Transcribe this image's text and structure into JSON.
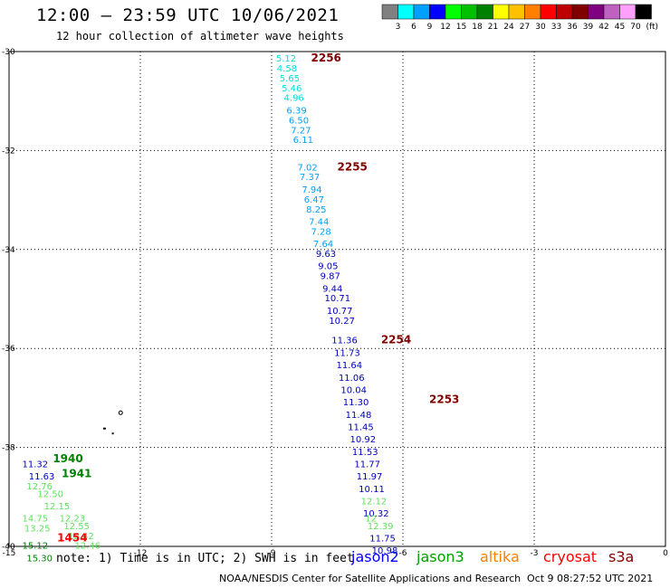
{
  "title": "12:00 — 23:59 UTC 10/06/2021",
  "subtitle": "12 hour collection of altimeter wave heights",
  "legend": {
    "unit": "(ft)",
    "bins": [
      {
        "label": "3",
        "color": "#808080"
      },
      {
        "label": "6",
        "color": "#00ffff"
      },
      {
        "label": "9",
        "color": "#00a0ff"
      },
      {
        "label": "12",
        "color": "#0000ff"
      },
      {
        "label": "15",
        "color": "#00ff00"
      },
      {
        "label": "18",
        "color": "#00c000"
      },
      {
        "label": "21",
        "color": "#008000"
      },
      {
        "label": "24",
        "color": "#ffff00"
      },
      {
        "label": "27",
        "color": "#ffc000"
      },
      {
        "label": "30",
        "color": "#ff8000"
      },
      {
        "label": "33",
        "color": "#ff0000"
      },
      {
        "label": "36",
        "color": "#c00000"
      },
      {
        "label": "39",
        "color": "#800000"
      },
      {
        "label": "42",
        "color": "#800080"
      },
      {
        "label": "45",
        "color": "#c060c0"
      },
      {
        "label": "70",
        "color": "#ffa0ff"
      },
      {
        "label": "",
        "color": "#000000"
      }
    ]
  },
  "note": "note: 1) Time is in UTC; 2) SWH is in feet",
  "satellites": [
    {
      "name": "jason2",
      "color": "#0000ff"
    },
    {
      "name": "jason3",
      "color": "#00a000"
    },
    {
      "name": "altika",
      "color": "#ff8000"
    },
    {
      "name": "cryosat",
      "color": "#ff0000"
    },
    {
      "name": "s3a",
      "color": "#800000"
    }
  ],
  "credit": "NOAA/NESDIS Center for Satellite Applications and Research",
  "credit_date": "Oct  9 08:27:52 UTC 2021",
  "chart_data": {
    "type": "scatter",
    "x_ticks": [
      "-15",
      "-12",
      "-9",
      "-6",
      "-3",
      "0"
    ],
    "y_ticks": [
      "-30",
      "-32",
      "-34",
      "-36",
      "-38",
      "-40"
    ],
    "xlim": [
      -15,
      0
    ],
    "ylim": [
      -40,
      -30
    ],
    "grid": true,
    "time_labels": [
      {
        "text": "2256",
        "lon": -8.1,
        "lat": -30.2,
        "color": "#800000"
      },
      {
        "text": "2255",
        "lon": -7.5,
        "lat": -32.4,
        "color": "#800000"
      },
      {
        "text": "2254",
        "lon": -6.5,
        "lat": -35.9,
        "color": "#800000"
      },
      {
        "text": "2253",
        "lon": -5.4,
        "lat": -37.1,
        "color": "#800000"
      },
      {
        "text": "1940",
        "lon": -14.0,
        "lat": -38.3,
        "color": "#008000"
      },
      {
        "text": "1941",
        "lon": -13.8,
        "lat": -38.6,
        "color": "#008000"
      },
      {
        "text": "1454",
        "lon": -13.9,
        "lat": -39.9,
        "color": "#ff0000"
      }
    ],
    "points": [
      {
        "v": "5.12",
        "lon": -8.9,
        "lat": -30.2,
        "c": "#00e0e0"
      },
      {
        "v": "4.58",
        "lon": -8.88,
        "lat": -30.4,
        "c": "#00e0e0"
      },
      {
        "v": "5.65",
        "lon": -8.82,
        "lat": -30.6,
        "c": "#00e0e0"
      },
      {
        "v": "5.46",
        "lon": -8.77,
        "lat": -30.8,
        "c": "#00e0e0"
      },
      {
        "v": "4.96",
        "lon": -8.72,
        "lat": -31.0,
        "c": "#00e0e0"
      },
      {
        "v": "6.39",
        "lon": -8.66,
        "lat": -31.25,
        "c": "#00a0ff"
      },
      {
        "v": "6.50",
        "lon": -8.61,
        "lat": -31.45,
        "c": "#00a0ff"
      },
      {
        "v": "7.27",
        "lon": -8.56,
        "lat": -31.65,
        "c": "#00a0ff"
      },
      {
        "v": "6.11",
        "lon": -8.51,
        "lat": -31.85,
        "c": "#00a0ff"
      },
      {
        "v": "7.02",
        "lon": -8.41,
        "lat": -32.4,
        "c": "#00a0ff"
      },
      {
        "v": "7.37",
        "lon": -8.36,
        "lat": -32.6,
        "c": "#00a0ff"
      },
      {
        "v": "7.94",
        "lon": -8.31,
        "lat": -32.85,
        "c": "#00a0ff"
      },
      {
        "v": "6.47",
        "lon": -8.26,
        "lat": -33.05,
        "c": "#00a0ff"
      },
      {
        "v": "8.25",
        "lon": -8.21,
        "lat": -33.25,
        "c": "#00a0ff"
      },
      {
        "v": "7.44",
        "lon": -8.15,
        "lat": -33.5,
        "c": "#00a0ff"
      },
      {
        "v": "7.28",
        "lon": -8.1,
        "lat": -33.7,
        "c": "#00a0ff"
      },
      {
        "v": "7.64",
        "lon": -8.05,
        "lat": -33.95,
        "c": "#00a0ff"
      },
      {
        "v": "9.63",
        "lon": -7.99,
        "lat": -34.15,
        "c": "#0000c0"
      },
      {
        "v": "9.05",
        "lon": -7.94,
        "lat": -34.4,
        "c": "#0000c0"
      },
      {
        "v": "9.87",
        "lon": -7.89,
        "lat": -34.6,
        "c": "#0000c0"
      },
      {
        "v": "9.44",
        "lon": -7.84,
        "lat": -34.85,
        "c": "#0000c0"
      },
      {
        "v": "10.71",
        "lon": -7.79,
        "lat": -35.05,
        "c": "#0000c0"
      },
      {
        "v": "10.77",
        "lon": -7.74,
        "lat": -35.3,
        "c": "#0000c0"
      },
      {
        "v": "10.27",
        "lon": -7.69,
        "lat": -35.5,
        "c": "#0000c0"
      },
      {
        "v": "11.36",
        "lon": -7.63,
        "lat": -35.9,
        "c": "#0000c0"
      },
      {
        "v": "11.73",
        "lon": -7.57,
        "lat": -36.15,
        "c": "#0000c0"
      },
      {
        "v": "11.64",
        "lon": -7.52,
        "lat": -36.4,
        "c": "#0000c0"
      },
      {
        "v": "11.06",
        "lon": -7.47,
        "lat": -36.65,
        "c": "#0000c0"
      },
      {
        "v": "10.04",
        "lon": -7.42,
        "lat": -36.9,
        "c": "#0000c0"
      },
      {
        "v": "11.30",
        "lon": -7.37,
        "lat": -37.15,
        "c": "#0000c0"
      },
      {
        "v": "11.48",
        "lon": -7.31,
        "lat": -37.4,
        "c": "#0000c0"
      },
      {
        "v": "11.45",
        "lon": -7.26,
        "lat": -37.65,
        "c": "#0000c0"
      },
      {
        "v": "10.92",
        "lon": -7.21,
        "lat": -37.9,
        "c": "#0000c0"
      },
      {
        "v": "11.53",
        "lon": -7.16,
        "lat": -38.15,
        "c": "#0000c0"
      },
      {
        "v": "11.77",
        "lon": -7.11,
        "lat": -38.4,
        "c": "#0000c0"
      },
      {
        "v": "11.97",
        "lon": -7.06,
        "lat": -38.65,
        "c": "#0000c0"
      },
      {
        "v": "10.11",
        "lon": -7.01,
        "lat": -38.9,
        "c": "#0000c0"
      },
      {
        "v": "12.12",
        "lon": -6.96,
        "lat": -39.15,
        "c": "#60e060"
      },
      {
        "v": "10.32",
        "lon": -6.91,
        "lat": -39.4,
        "c": "#0000c0"
      },
      {
        "v": "12",
        "lon": -6.86,
        "lat": -39.5,
        "c": "#60e060"
      },
      {
        "v": "12.39",
        "lon": -6.81,
        "lat": -39.65,
        "c": "#60e060"
      },
      {
        "v": "11.75",
        "lon": -6.76,
        "lat": -39.9,
        "c": "#0000c0"
      },
      {
        "v": "10.98",
        "lon": -6.71,
        "lat": -40.15,
        "c": "#0000c0"
      },
      {
        "v": "11.32",
        "lon": -14.7,
        "lat": -38.4,
        "c": "#0000c0"
      },
      {
        "v": "11.63",
        "lon": -14.55,
        "lat": -38.65,
        "c": "#0000c0"
      },
      {
        "v": "12.76",
        "lon": -14.6,
        "lat": -38.85,
        "c": "#60e060"
      },
      {
        "v": "12.50",
        "lon": -14.35,
        "lat": -39.0,
        "c": "#60e060"
      },
      {
        "v": "12.15",
        "lon": -14.2,
        "lat": -39.25,
        "c": "#60e060"
      },
      {
        "v": "14.75",
        "lon": -14.7,
        "lat": -39.5,
        "c": "#60e060"
      },
      {
        "v": "12.23",
        "lon": -13.85,
        "lat": -39.5,
        "c": "#60e060"
      },
      {
        "v": "13.25",
        "lon": -14.65,
        "lat": -39.7,
        "c": "#60e060"
      },
      {
        "v": "12.55",
        "lon": -13.75,
        "lat": -39.65,
        "c": "#60e060"
      },
      {
        "v": "12.42",
        "lon": -13.65,
        "lat": -39.85,
        "c": "#60e060"
      },
      {
        "v": "12.46",
        "lon": -13.5,
        "lat": -40.05,
        "c": "#60e060"
      },
      {
        "v": "15.12",
        "lon": -14.7,
        "lat": -40.05,
        "c": "#008000"
      },
      {
        "v": "15.30",
        "lon": -14.6,
        "lat": -40.3,
        "c": "#008000"
      }
    ]
  }
}
